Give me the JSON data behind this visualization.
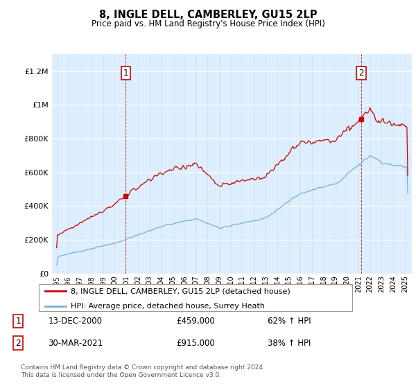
{
  "title": "8, INGLE DELL, CAMBERLEY, GU15 2LP",
  "subtitle": "Price paid vs. HM Land Registry's House Price Index (HPI)",
  "legend_line1": "8, INGLE DELL, CAMBERLEY, GU15 2LP (detached house)",
  "legend_line2": "HPI: Average price, detached house, Surrey Heath",
  "annotation1_date": "13-DEC-2000",
  "annotation1_price": "£459,000",
  "annotation1_hpi": "62% ↑ HPI",
  "annotation2_date": "30-MAR-2021",
  "annotation2_price": "£915,000",
  "annotation2_hpi": "38% ↑ HPI",
  "footer": "Contains HM Land Registry data © Crown copyright and database right 2024.\nThis data is licensed under the Open Government Licence v3.0.",
  "red_color": "#cc0000",
  "blue_color": "#7aadd4",
  "background_color": "#ddeeff",
  "ylim": [
    0,
    1300000
  ],
  "yticks": [
    0,
    200000,
    400000,
    600000,
    800000,
    1000000,
    1200000
  ],
  "ytick_labels": [
    "£0",
    "£200K",
    "£400K",
    "£600K",
    "£800K",
    "£1M",
    "£1.2M"
  ],
  "sale1_year": 2000.95,
  "sale1_price": 459000,
  "sale2_year": 2021.25,
  "sale2_price": 915000
}
